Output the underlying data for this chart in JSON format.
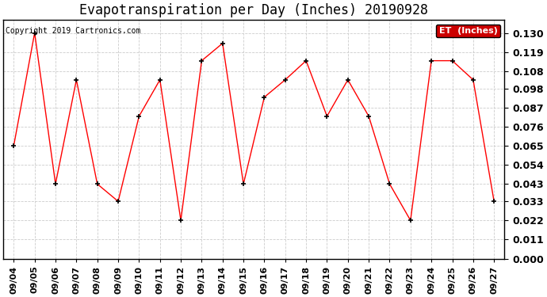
{
  "title": "Evapotranspiration per Day (Inches) 20190928",
  "copyright": "Copyright 2019 Cartronics.com",
  "legend_label": "ET  (Inches)",
  "dates": [
    "09/04",
    "09/05",
    "09/06",
    "09/07",
    "09/08",
    "09/09",
    "09/10",
    "09/11",
    "09/12",
    "09/13",
    "09/14",
    "09/15",
    "09/16",
    "09/17",
    "09/18",
    "09/19",
    "09/20",
    "09/21",
    "09/22",
    "09/23",
    "09/24",
    "09/25",
    "09/26",
    "09/27"
  ],
  "values": [
    0.065,
    0.13,
    0.043,
    0.103,
    0.043,
    0.033,
    0.082,
    0.103,
    0.022,
    0.114,
    0.124,
    0.043,
    0.093,
    0.103,
    0.114,
    0.082,
    0.103,
    0.082,
    0.043,
    0.022,
    0.114,
    0.114,
    0.103,
    0.033
  ],
  "line_color": "#ff0000",
  "marker": "+",
  "marker_color": "#000000",
  "bg_color": "#ffffff",
  "plot_bg_color": "#ffffff",
  "grid_color": "#cccccc",
  "ylim_min": 0.0,
  "ylim_max": 0.1375,
  "yticks": [
    0.0,
    0.011,
    0.022,
    0.033,
    0.043,
    0.054,
    0.065,
    0.076,
    0.087,
    0.098,
    0.108,
    0.119,
    0.13
  ],
  "legend_bg": "#cc0000",
  "legend_text_color": "#ffffff",
  "title_fontsize": 12,
  "tick_fontsize": 8,
  "ytick_fontsize": 9,
  "copyright_fontsize": 7
}
